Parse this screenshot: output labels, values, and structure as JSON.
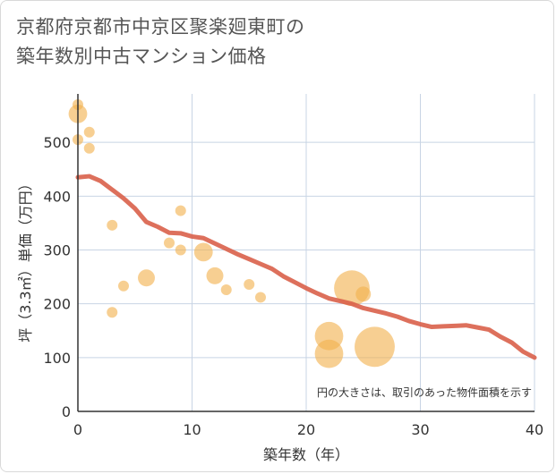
{
  "title_line1": "京都府京都市中京区聚楽廻東町の",
  "title_line2": "築年数別中古マンション価格",
  "chart_data": {
    "type": "scatter",
    "title": "京都府京都市中京区聚楽廻東町の築年数別中古マンション価格",
    "xlabel": "築年数（年）",
    "ylabel": "坪（3.3㎡）単価（万円）",
    "xlim": [
      0,
      40
    ],
    "ylim": [
      0,
      590
    ],
    "xticks": [
      0,
      10,
      20,
      30,
      40
    ],
    "yticks": [
      0,
      100,
      200,
      300,
      400,
      500
    ],
    "grid": true,
    "note": "円の大きさは、取引のあった物件面積を示す",
    "points": [
      {
        "x": 0,
        "y": 570,
        "size": 1
      },
      {
        "x": 0,
        "y": 553,
        "size": 3
      },
      {
        "x": 0,
        "y": 505,
        "size": 1
      },
      {
        "x": 1,
        "y": 519,
        "size": 1
      },
      {
        "x": 1,
        "y": 489,
        "size": 1
      },
      {
        "x": 3,
        "y": 346,
        "size": 1
      },
      {
        "x": 3,
        "y": 184,
        "size": 1
      },
      {
        "x": 4,
        "y": 233,
        "size": 1
      },
      {
        "x": 6,
        "y": 248,
        "size": 2.5
      },
      {
        "x": 8,
        "y": 313,
        "size": 1
      },
      {
        "x": 9,
        "y": 373,
        "size": 1
      },
      {
        "x": 9,
        "y": 300,
        "size": 1
      },
      {
        "x": 11,
        "y": 296,
        "size": 3
      },
      {
        "x": 12,
        "y": 252,
        "size": 2.5
      },
      {
        "x": 13,
        "y": 226,
        "size": 1
      },
      {
        "x": 15,
        "y": 236,
        "size": 1
      },
      {
        "x": 16,
        "y": 212,
        "size": 1
      },
      {
        "x": 22,
        "y": 140,
        "size": 7
      },
      {
        "x": 22,
        "y": 107,
        "size": 7
      },
      {
        "x": 24,
        "y": 229,
        "size": 11
      },
      {
        "x": 25,
        "y": 218,
        "size": 2
      },
      {
        "x": 26,
        "y": 120,
        "size": 14
      }
    ],
    "trend_line": {
      "x": [
        0,
        1,
        2,
        3,
        4,
        5,
        6,
        7,
        8,
        9,
        10,
        11,
        12,
        13,
        14,
        15,
        16,
        17,
        18,
        19,
        20,
        21,
        22,
        23,
        24,
        25,
        26,
        27,
        28,
        29,
        30,
        31,
        32,
        33,
        34,
        35,
        36,
        37,
        38,
        39,
        40
      ],
      "y": [
        435,
        437,
        428,
        412,
        396,
        377,
        352,
        343,
        332,
        331,
        325,
        322,
        312,
        302,
        292,
        283,
        274,
        265,
        251,
        240,
        229,
        219,
        210,
        205,
        200,
        192,
        187,
        182,
        176,
        168,
        162,
        157,
        158,
        159,
        160,
        156,
        152,
        139,
        128,
        111,
        100
      ]
    },
    "colors": {
      "bubble": "#f2b24f",
      "trend": "#d9614a",
      "grid": "#c8d4e4"
    }
  }
}
